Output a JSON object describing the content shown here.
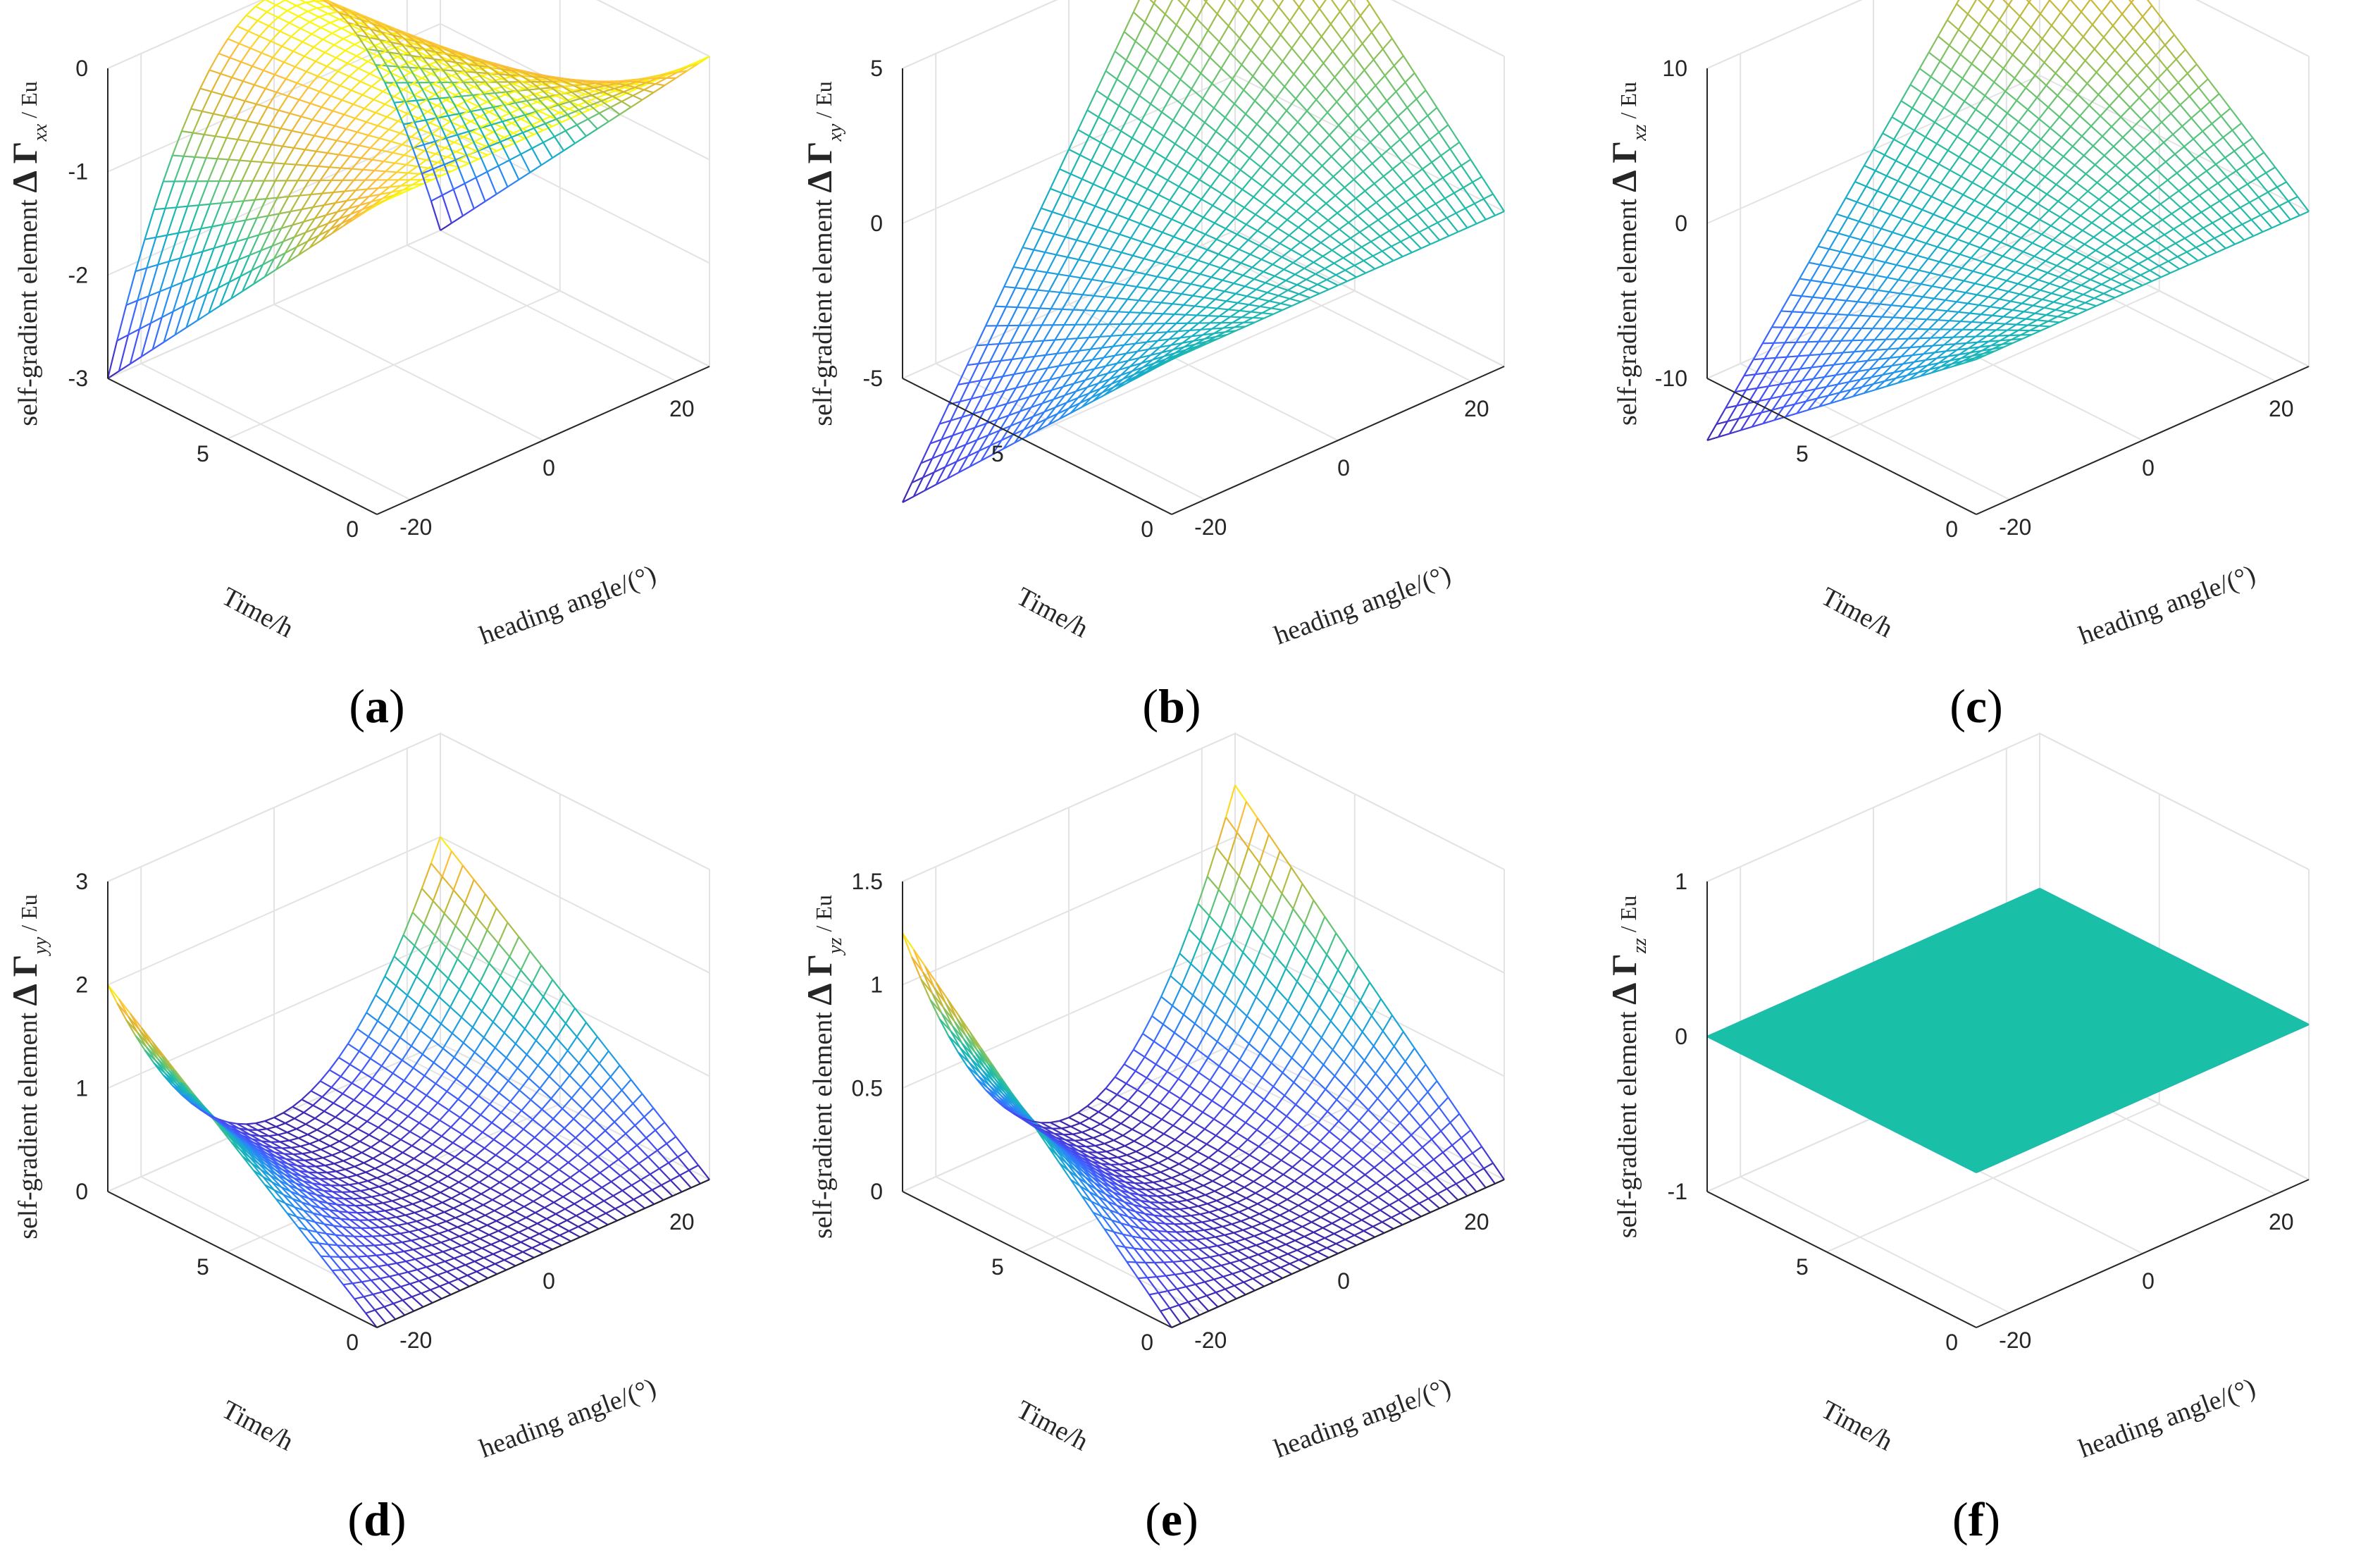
{
  "chart_data": [
    {
      "panel": "(a)",
      "type": "surface",
      "surface_function": "-3*(T/9)*(H/25)^2",
      "xlabel": "heading angle/(°)",
      "ylabel": "Time/h",
      "zlabel": {
        "prefix": "self-gradient element  ",
        "symbol": "Δ Γ",
        "sub": "xx",
        "unit": " / Eu"
      },
      "xticks": [
        -20,
        0,
        20
      ],
      "yticks": [
        0,
        5
      ],
      "zticks": [
        0,
        -1,
        -2,
        -3
      ],
      "zlim": [
        -3,
        0
      ],
      "samples": [
        {
          "heading": -25,
          "time": 0,
          "value": 0
        },
        {
          "heading": 0,
          "time": 9,
          "value": 0
        },
        {
          "heading": -25,
          "time": 9,
          "value": -3
        },
        {
          "heading": 25,
          "time": 9,
          "value": -3
        }
      ]
    },
    {
      "panel": "(b)",
      "type": "surface",
      "surface_function": "9*(T/9)*(H/25)",
      "xlabel": "heading angle/(°)",
      "ylabel": "Time/h",
      "zlabel": {
        "prefix": "self-gradient element  ",
        "symbol": "Δ Γ",
        "sub": "xy",
        "unit": " / Eu"
      },
      "xticks": [
        -20,
        0,
        20
      ],
      "yticks": [
        0,
        5
      ],
      "zticks": [
        5,
        0,
        -5
      ],
      "zlim": [
        -5,
        5
      ],
      "samples": [
        {
          "heading": -25,
          "time": 0,
          "value": 0
        },
        {
          "heading": -25,
          "time": 9,
          "value": -9
        },
        {
          "heading": 25,
          "time": 9,
          "value": 9
        }
      ]
    },
    {
      "panel": "(c)",
      "type": "surface",
      "surface_function": "14*(T/9)*(H/25)",
      "xlabel": "heading angle/(°)",
      "ylabel": "Time/h",
      "zlabel": {
        "prefix": "self-gradient element  ",
        "symbol": "Δ Γ",
        "sub": "xz",
        "unit": " / Eu"
      },
      "xticks": [
        -20,
        0,
        20
      ],
      "yticks": [
        0,
        5
      ],
      "zticks": [
        10,
        0,
        -10
      ],
      "zlim": [
        -10,
        10
      ],
      "samples": [
        {
          "heading": -25,
          "time": 0,
          "value": 0
        },
        {
          "heading": -25,
          "time": 9,
          "value": -14
        },
        {
          "heading": 25,
          "time": 9,
          "value": 14
        }
      ]
    },
    {
      "panel": "(d)",
      "type": "surface",
      "surface_function": "2*(T/9)*(H/25)^2",
      "xlabel": "heading angle/(°)",
      "ylabel": "Time/h",
      "zlabel": {
        "prefix": "self-gradient element  ",
        "symbol": "Δ Γ",
        "sub": "yy",
        "unit": " / Eu"
      },
      "xticks": [
        -20,
        0,
        20
      ],
      "yticks": [
        0,
        5
      ],
      "zticks": [
        3,
        2,
        1,
        0
      ],
      "zlim": [
        0,
        3
      ],
      "samples": [
        {
          "heading": -25,
          "time": 0,
          "value": 0
        },
        {
          "heading": 0,
          "time": 9,
          "value": 0
        },
        {
          "heading": -25,
          "time": 9,
          "value": 2
        },
        {
          "heading": 25,
          "time": 9,
          "value": 2
        }
      ]
    },
    {
      "panel": "(e)",
      "type": "surface",
      "surface_function": "1.25*(T/9)*(H/25)^2",
      "xlabel": "heading angle/(°)",
      "ylabel": "Time/h",
      "zlabel": {
        "prefix": "self-gradient element  ",
        "symbol": "Δ Γ",
        "sub": "yz",
        "unit": " / Eu"
      },
      "xticks": [
        -20,
        0,
        20
      ],
      "yticks": [
        0,
        5
      ],
      "zticks": [
        1.5,
        1,
        0.5,
        0
      ],
      "zlim": [
        0,
        1.5
      ],
      "samples": [
        {
          "heading": -25,
          "time": 0,
          "value": 0
        },
        {
          "heading": 0,
          "time": 9,
          "value": 0
        },
        {
          "heading": -25,
          "time": 9,
          "value": 1.25
        },
        {
          "heading": 25,
          "time": 9,
          "value": 1.25
        }
      ]
    },
    {
      "panel": "(f)",
      "type": "surface",
      "surface_function": "0",
      "xlabel": "heading angle/(°)",
      "ylabel": "Time/h",
      "zlabel": {
        "prefix": "self-gradient element  ",
        "symbol": "Δ Γ",
        "sub": "zz",
        "unit": " / Eu"
      },
      "xticks": [
        -20,
        0,
        20
      ],
      "yticks": [
        0,
        5
      ],
      "zticks": [
        1,
        0,
        -1
      ],
      "zlim": [
        -1,
        1
      ],
      "samples": [
        {
          "heading": -25,
          "time": 0,
          "value": 0
        },
        {
          "heading": 25,
          "time": 9,
          "value": 0
        }
      ]
    }
  ],
  "colormap": [
    "#3e26a8",
    "#4746eb",
    "#3e63fe",
    "#2c85f6",
    "#1e9fe0",
    "#16b2be",
    "#29bda0",
    "#62c478",
    "#a9be48",
    "#ddb52f",
    "#fdbe3d",
    "#f9fb0e"
  ],
  "grid": true
}
